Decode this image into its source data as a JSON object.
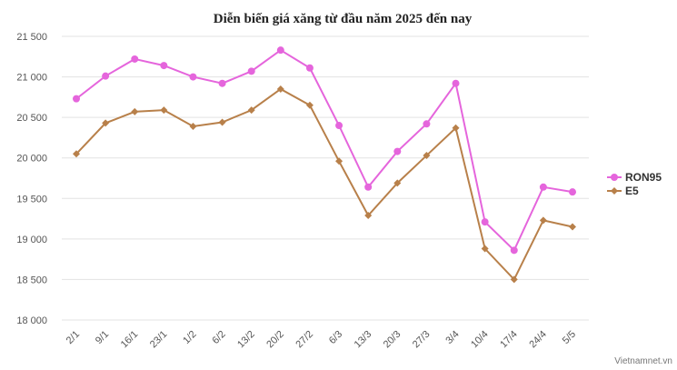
{
  "chart_data": {
    "type": "line",
    "title": "Diễn biến giá xăng từ đầu năm 2025 đến nay",
    "xlabel": "",
    "ylabel": "",
    "categories": [
      "2/1",
      "9/1",
      "16/1",
      "23/1",
      "1/2",
      "6/2",
      "13/2",
      "20/2",
      "27/2",
      "6/3",
      "13/3",
      "20/3",
      "27/3",
      "3/4",
      "10/4",
      "17/4",
      "24/4",
      "5/5"
    ],
    "ylim": [
      18000,
      21500
    ],
    "yticks": [
      18000,
      18500,
      19000,
      19500,
      20000,
      20500,
      21000,
      21500
    ],
    "ytick_labels": [
      "18 000",
      "18 500",
      "19 000",
      "19 500",
      "20 000",
      "20 500",
      "21 000",
      "21 500"
    ],
    "grid": true,
    "legend_position": "right",
    "series": [
      {
        "name": "RON95",
        "color": "#e565dc",
        "marker": "circle",
        "values": [
          20730,
          21010,
          21220,
          21140,
          21000,
          20920,
          21070,
          21330,
          21110,
          20400,
          19640,
          20080,
          20420,
          20920,
          19210,
          18860,
          19640,
          19580
        ]
      },
      {
        "name": "E5",
        "color": "#b8804a",
        "marker": "diamond",
        "values": [
          20050,
          20430,
          20570,
          20590,
          20390,
          20440,
          20590,
          20850,
          20650,
          19960,
          19290,
          19690,
          20030,
          20370,
          18880,
          18500,
          19230,
          19150
        ]
      }
    ],
    "credit": "Vietnamnet.vn"
  }
}
